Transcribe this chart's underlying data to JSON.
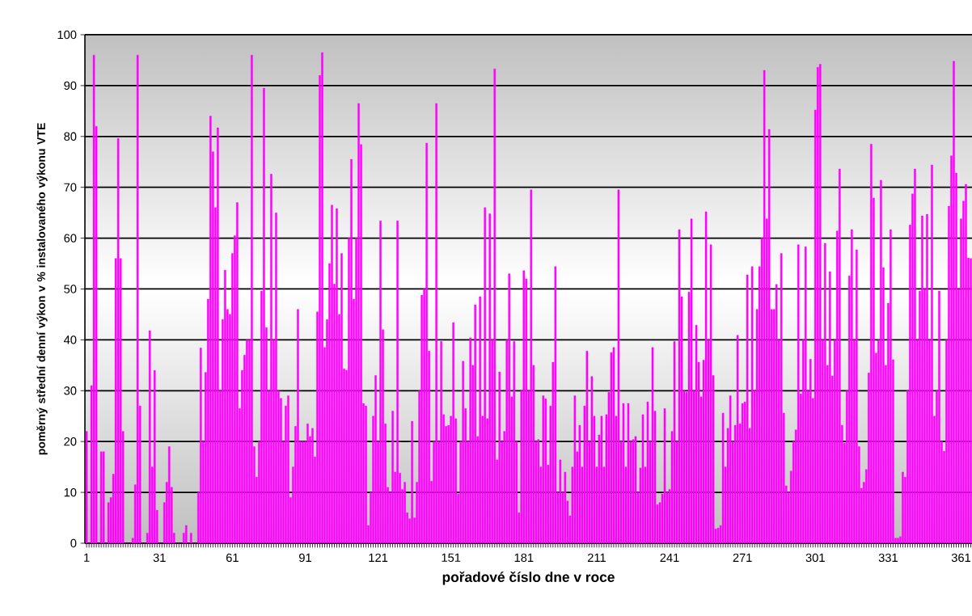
{
  "chart_data": {
    "type": "bar",
    "ylabel": "poměrný střední denní výkon v % instalovaného výkonu VTE",
    "xlabel": "pořadové číslo dne v roce",
    "color": "#ff00ff",
    "ylim": [
      0,
      100
    ],
    "yticks": [
      0,
      10,
      20,
      30,
      40,
      50,
      60,
      70,
      80,
      90,
      100
    ],
    "grid": "y",
    "categories": [
      "1",
      null,
      null,
      null,
      null,
      null,
      null,
      null,
      null,
      null,
      null,
      null,
      null,
      null,
      null,
      null,
      null,
      null,
      null,
      null,
      null,
      null,
      null,
      null,
      null,
      null,
      null,
      null,
      null,
      null,
      "31",
      null,
      null,
      null,
      null,
      null,
      null,
      null,
      null,
      null,
      null,
      null,
      null,
      null,
      null,
      null,
      null,
      null,
      null,
      null,
      null,
      null,
      null,
      null,
      null,
      null,
      null,
      null,
      null,
      null,
      "61",
      null,
      null,
      null,
      null,
      null,
      null,
      null,
      null,
      null,
      null,
      null,
      null,
      null,
      null,
      null,
      null,
      null,
      null,
      null,
      null,
      null,
      null,
      null,
      null,
      null,
      null,
      null,
      null,
      null,
      "91",
      null,
      null,
      null,
      null,
      null,
      null,
      null,
      null,
      null,
      null,
      null,
      null,
      null,
      null,
      null,
      null,
      null,
      null,
      null,
      null,
      null,
      null,
      null,
      null,
      null,
      null,
      null,
      null,
      null,
      "121",
      null,
      null,
      null,
      null,
      null,
      null,
      null,
      null,
      null,
      null,
      null,
      null,
      null,
      null,
      null,
      null,
      null,
      null,
      null,
      null,
      null,
      null,
      null,
      null,
      null,
      null,
      null,
      null,
      null,
      "151",
      null,
      null,
      null,
      null,
      null,
      null,
      null,
      null,
      null,
      null,
      null,
      null,
      null,
      null,
      null,
      null,
      null,
      null,
      null,
      null,
      null,
      null,
      null,
      null,
      null,
      null,
      null,
      null,
      null,
      "181",
      null,
      null,
      null,
      null,
      null,
      null,
      null,
      null,
      null,
      null,
      null,
      null,
      null,
      null,
      null,
      null,
      null,
      null,
      null,
      null,
      null,
      null,
      null,
      null,
      null,
      null,
      null,
      null,
      null,
      "211",
      null,
      null,
      null,
      null,
      null,
      null,
      null,
      null,
      null,
      null,
      null,
      null,
      null,
      null,
      null,
      null,
      null,
      null,
      null,
      null,
      null,
      null,
      null,
      null,
      null,
      null,
      null,
      null,
      null,
      "241",
      null,
      null,
      null,
      null,
      null,
      null,
      null,
      null,
      null,
      null,
      null,
      null,
      null,
      null,
      null,
      null,
      null,
      null,
      null,
      null,
      null,
      null,
      null,
      null,
      null,
      null,
      null,
      null,
      null,
      "271",
      null,
      null,
      null,
      null,
      null,
      null,
      null,
      null,
      null,
      null,
      null,
      null,
      null,
      null,
      null,
      null,
      null,
      null,
      null,
      null,
      null,
      null,
      null,
      null,
      null,
      null,
      null,
      null,
      null,
      "301",
      null,
      null,
      null,
      null,
      null,
      null,
      null,
      null,
      null,
      null,
      null,
      null,
      null,
      null,
      null,
      null,
      null,
      null,
      null,
      null,
      null,
      null,
      null,
      null,
      null,
      null,
      null,
      null,
      null,
      "331",
      null,
      null,
      null,
      null,
      null,
      null,
      null,
      null,
      null,
      null,
      null,
      null,
      null,
      null,
      null,
      null,
      null,
      null,
      null,
      null,
      null,
      null,
      null,
      null,
      null,
      null,
      null,
      null,
      null,
      "361",
      null,
      null,
      null,
      null
    ],
    "values": [
      22,
      0,
      31,
      96,
      82,
      0,
      18,
      18,
      0,
      8,
      9,
      13.6,
      56,
      79.6,
      56,
      22,
      0,
      0,
      0,
      1,
      11.5,
      96,
      27,
      0,
      0,
      2,
      41.8,
      15,
      34,
      6.5,
      0,
      0,
      8,
      12,
      19,
      11,
      2,
      0,
      0,
      0,
      2,
      3.5,
      0,
      2,
      0,
      0,
      10,
      38.4,
      20,
      33.6,
      48,
      84,
      77,
      66,
      81.7,
      30,
      44,
      53.7,
      46,
      45,
      57,
      60.5,
      67,
      26.5,
      34,
      37,
      40,
      40,
      96,
      19,
      13,
      20,
      49.6,
      89.5,
      42.4,
      30,
      72.6,
      40,
      65,
      30,
      28.5,
      20,
      27,
      29,
      9,
      15,
      23,
      46,
      20,
      20,
      20,
      23.5,
      21,
      22.6,
      17,
      45.5,
      92,
      96.5,
      38.5,
      44,
      55,
      66.5,
      51,
      65.8,
      45,
      57,
      34.3,
      34,
      60,
      75.5,
      48,
      60,
      86.5,
      78.4,
      27.5,
      27,
      3.5,
      10,
      25,
      33,
      20,
      63.4,
      42,
      23.5,
      11,
      10,
      26,
      14,
      63.4,
      13.8,
      10.6,
      12,
      6,
      4.8,
      24,
      5,
      12,
      30,
      48.8,
      50,
      78.7,
      37.8,
      12.2,
      20,
      86.5,
      20,
      39.7,
      25.3,
      23,
      23.2,
      25,
      43.4,
      24.5,
      9.7,
      20,
      35.8,
      26.5,
      20,
      40.4,
      35,
      46.9,
      21,
      48.5,
      25,
      66,
      24.5,
      64.8,
      40,
      93.3,
      16.4,
      33.7,
      20,
      22,
      40,
      53,
      28.8,
      39.7,
      20,
      6,
      30,
      53.6,
      52,
      30,
      69.5,
      35,
      20,
      20.4,
      15,
      29,
      28.4,
      15.4,
      27,
      35.6,
      54.4,
      10,
      16.4,
      10,
      14,
      8.3,
      5.4,
      15,
      29,
      18,
      23.2,
      15,
      27,
      37.8,
      20,
      32.8,
      25,
      15,
      21.3,
      25,
      15,
      25.3,
      29.7,
      37.5,
      38.5,
      25,
      69.5,
      20,
      27.5,
      15,
      27.5,
      20,
      20.4,
      21,
      10,
      14.8,
      25.3,
      15,
      27.8,
      20,
      38.5,
      26,
      7.6,
      8,
      9.7,
      26.5,
      10,
      10.6,
      22,
      39.7,
      20,
      61.7,
      48.5,
      30,
      29.7,
      49.4,
      63.8,
      30,
      42.9,
      35.6,
      28.8,
      36,
      65.2,
      40,
      58.7,
      33,
      2.8,
      3,
      3.5,
      25.6,
      15,
      22.6,
      29,
      20,
      23.2,
      40.9,
      23.5,
      27.5,
      27.8,
      52.8,
      22.6,
      54.4,
      30,
      46,
      54.4,
      60,
      93,
      63.8,
      81.4,
      46,
      46,
      50.9,
      40,
      57,
      25.6,
      11.3,
      10,
      14.2,
      20,
      22.3,
      58.7,
      29.4,
      40,
      58.3,
      30,
      36.2,
      28.5,
      85.2,
      93.6,
      94.2,
      40,
      59,
      35,
      53.4,
      32.9,
      40,
      61.4,
      73.6,
      23.2,
      19.7,
      30,
      52.6,
      61.7,
      40,
      57.7,
      19,
      10.8,
      12,
      14.5,
      33.5,
      78.5,
      67.9,
      37.4,
      40,
      71.4,
      54.2,
      35,
      47.2,
      61.7,
      36.1,
      1,
      1,
      1.3,
      14,
      13,
      30,
      62.6,
      68.7,
      73.6,
      40,
      49.6,
      64.4,
      50,
      64.7,
      40,
      74.4,
      25,
      30,
      49.6,
      20,
      18.1,
      40,
      66.3,
      76.2,
      94.8,
      72.8,
      50,
      63.8,
      67.3,
      70.6,
      56.1,
      56
    ]
  }
}
